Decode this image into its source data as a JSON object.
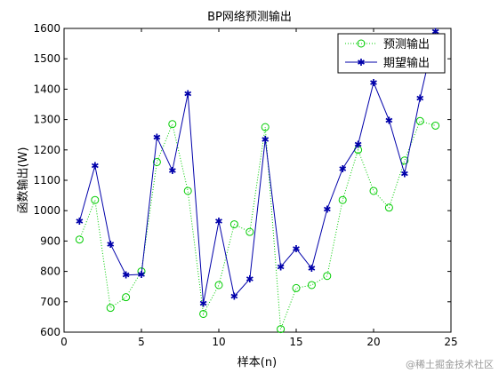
{
  "chart_data": {
    "type": "line",
    "title": "BP网络预测输出",
    "xlabel": "样本(n)",
    "ylabel": "函数输出(W)",
    "xlim": [
      0,
      25
    ],
    "ylim": [
      600,
      1600
    ],
    "xticks": [
      0,
      5,
      10,
      15,
      20,
      25
    ],
    "yticks": [
      600,
      700,
      800,
      900,
      1000,
      1100,
      1200,
      1300,
      1400,
      1500,
      1600
    ],
    "x": [
      1,
      2,
      3,
      4,
      5,
      6,
      7,
      8,
      9,
      10,
      11,
      12,
      13,
      14,
      15,
      16,
      17,
      18,
      19,
      20,
      21,
      22,
      23,
      24
    ],
    "series": [
      {
        "name": "预测输出",
        "style": "dotted-circle",
        "color": "#00cc00",
        "values": [
          905,
          1035,
          680,
          715,
          800,
          1160,
          1285,
          1065,
          660,
          755,
          955,
          930,
          1275,
          610,
          745,
          755,
          785,
          1035,
          1200,
          1065,
          1010,
          1165,
          1295,
          1280
        ]
      },
      {
        "name": "期望输出",
        "style": "solid-star",
        "color": "#0000aa",
        "values": [
          965,
          1148,
          890,
          788,
          790,
          1242,
          1132,
          1385,
          695,
          965,
          718,
          775,
          1235,
          815,
          875,
          810,
          1005,
          1138,
          1218,
          1422,
          1298,
          1122,
          1370,
          1590
        ]
      }
    ],
    "legend": "top-right",
    "grid": false
  },
  "watermark": "@稀土掘金技术社区"
}
